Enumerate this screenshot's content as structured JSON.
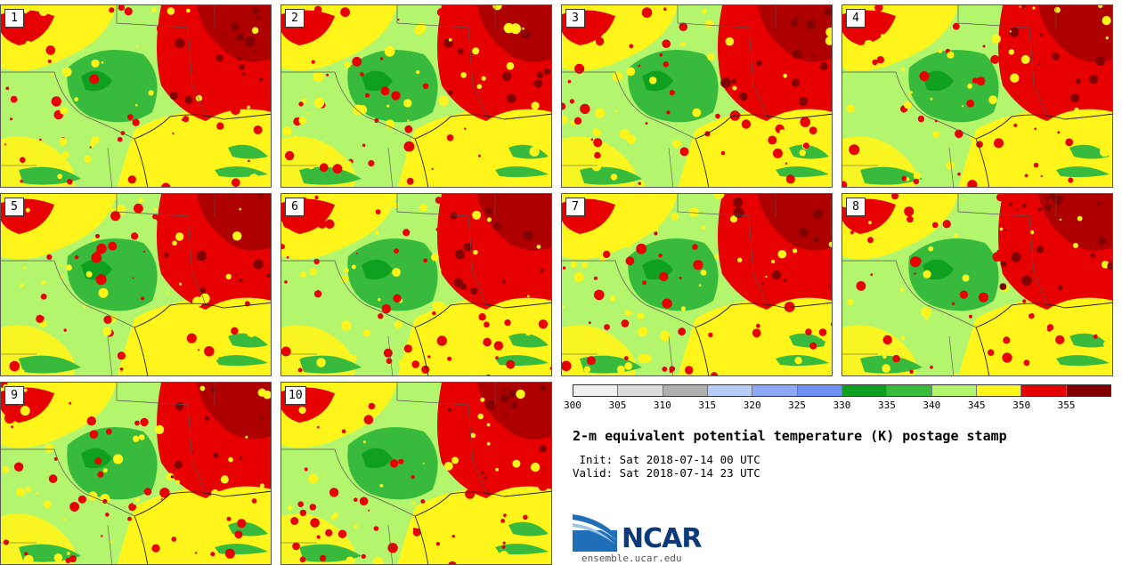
{
  "panels": [
    {
      "label": "1"
    },
    {
      "label": "2"
    },
    {
      "label": "3"
    },
    {
      "label": "4"
    },
    {
      "label": "5"
    },
    {
      "label": "6"
    },
    {
      "label": "7"
    },
    {
      "label": "8"
    },
    {
      "label": "9"
    },
    {
      "label": "10"
    }
  ],
  "colorbar": {
    "colors": [
      "#f0f0f0",
      "#dcdcdc",
      "#b0b0b0",
      "#b8ccf8",
      "#8ca8f6",
      "#7090f4",
      "#10a020",
      "#38bb3c",
      "#b4f56e",
      "#fff51a",
      "#e60000",
      "#820000"
    ],
    "ticks": [
      "300",
      "305",
      "310",
      "315",
      "320",
      "325",
      "330",
      "335",
      "340",
      "345",
      "350",
      "355"
    ]
  },
  "title": "2-m equivalent potential temperature (K) postage stamp",
  "init_line": " Init: Sat 2018-07-14 00 UTC",
  "valid_line": "Valid: Sat 2018-07-14 23 UTC",
  "logo_text": "NCAR",
  "website": "ensemble.ucar.edu",
  "map_colors": {
    "light_green": "#b4f56e",
    "green": "#38bb3c",
    "dark_green": "#10a020",
    "yellow": "#fff51a",
    "red": "#e60000",
    "dark_red": "#820000",
    "boundary": "#555555"
  }
}
